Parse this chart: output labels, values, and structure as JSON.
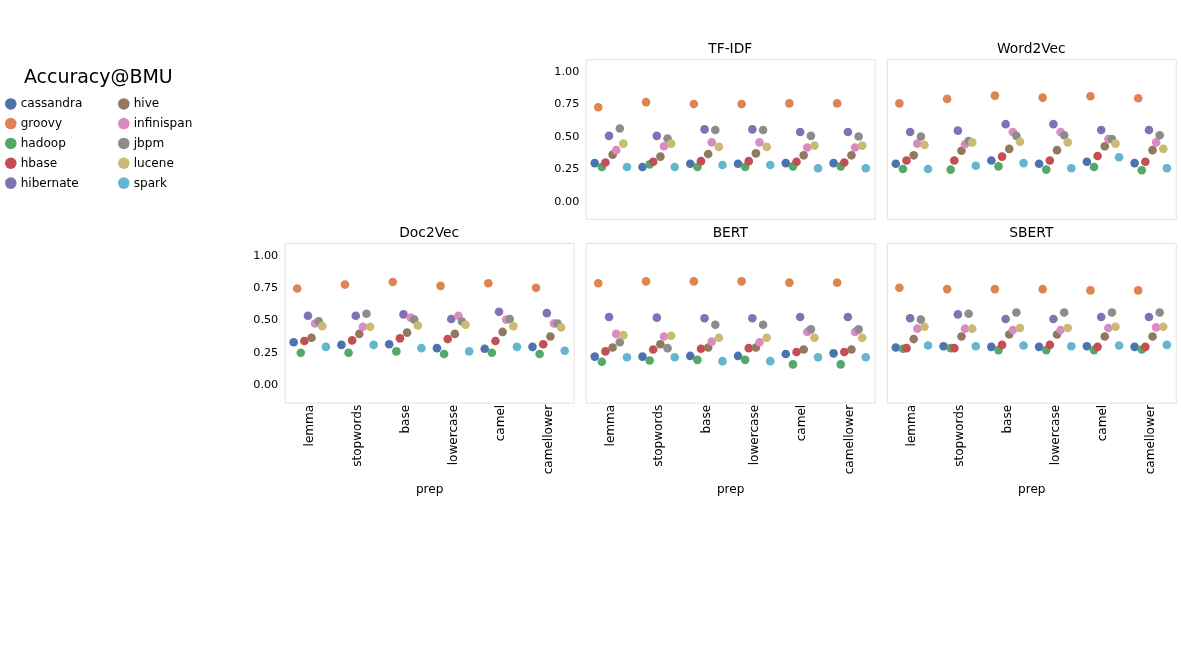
{
  "chart_data": [
    {
      "type": "scatter",
      "title": "TF-IDF",
      "legend_title": "Accuracy@BMU",
      "legend": "left",
      "tick_labels": "y",
      "grid": false,
      "marker": "circle",
      "categories": [
        "lemma",
        "stopwords",
        "base",
        "lowercase",
        "camel",
        "camellower"
      ],
      "ylim": [
        -0.14,
        1.09
      ],
      "yticks": [
        {
          "value": 0,
          "label": "0.00"
        },
        {
          "value": 0.25,
          "label": "0.25"
        },
        {
          "value": 0.5,
          "label": "0.50"
        },
        {
          "value": 0.75,
          "label": "0.75"
        },
        {
          "value": 1,
          "label": "1.00"
        }
      ],
      "series": [
        {
          "name": "cassandra",
          "color": "#4c72b0",
          "values": [
            0.29,
            0.26,
            0.285,
            0.285,
            0.29,
            0.29
          ]
        },
        {
          "name": "groovy",
          "color": "#dd8452",
          "values": [
            0.72,
            0.76,
            0.745,
            0.745,
            0.75,
            0.75
          ]
        },
        {
          "name": "hadoop",
          "color": "#55a868",
          "values": [
            0.26,
            0.28,
            0.26,
            0.26,
            0.265,
            0.265
          ]
        },
        {
          "name": "hbase",
          "color": "#c44e52",
          "values": [
            0.295,
            0.3,
            0.305,
            0.305,
            0.3,
            0.295
          ]
        },
        {
          "name": "hibernate",
          "color": "#8172b3",
          "values": [
            0.5,
            0.5,
            0.55,
            0.55,
            0.53,
            0.53
          ]
        },
        {
          "name": "hive",
          "color": "#937860",
          "values": [
            0.355,
            0.34,
            0.36,
            0.365,
            0.35,
            0.35
          ]
        },
        {
          "name": "infinispan",
          "color": "#da8bc3",
          "values": [
            0.39,
            0.42,
            0.45,
            0.45,
            0.41,
            0.41
          ]
        },
        {
          "name": "jbpm",
          "color": "#8c8c8c",
          "values": [
            0.557,
            0.48,
            0.545,
            0.545,
            0.5,
            0.495
          ]
        },
        {
          "name": "lucene",
          "color": "#ccb974",
          "values": [
            0.44,
            0.44,
            0.415,
            0.415,
            0.425,
            0.425
          ]
        },
        {
          "name": "spark",
          "color": "#64b5cd",
          "values": [
            0.26,
            0.26,
            0.275,
            0.275,
            0.25,
            0.25
          ]
        }
      ]
    },
    {
      "type": "scatter",
      "title": "Word2Vec",
      "legend": false,
      "tick_labels": false,
      "grid": false,
      "marker": "circle",
      "categories": [
        "lemma",
        "stopwords",
        "base",
        "lowercase",
        "camel",
        "camellower"
      ],
      "ylim": [
        -0.14,
        1.09
      ],
      "series": [
        {
          "name": "cassandra",
          "color": "#4c72b0",
          "values": [
            0.285,
            null,
            0.31,
            0.285,
            0.3,
            0.29
          ]
        },
        {
          "name": "groovy",
          "color": "#dd8452",
          "values": [
            0.75,
            0.785,
            0.81,
            0.795,
            0.805,
            0.79
          ]
        },
        {
          "name": "hadoop",
          "color": "#55a868",
          "values": [
            0.245,
            0.24,
            0.265,
            0.24,
            0.26,
            0.235
          ]
        },
        {
          "name": "hbase",
          "color": "#c44e52",
          "values": [
            0.31,
            0.31,
            0.34,
            0.31,
            0.345,
            0.3
          ]
        },
        {
          "name": "hibernate",
          "color": "#8172b3",
          "values": [
            0.53,
            0.54,
            0.59,
            0.59,
            0.545,
            0.545
          ]
        },
        {
          "name": "hive",
          "color": "#937860",
          "values": [
            0.35,
            0.385,
            0.4,
            0.39,
            0.42,
            0.39
          ]
        },
        {
          "name": "infinispan",
          "color": "#da8bc3",
          "values": [
            0.44,
            0.435,
            0.53,
            0.53,
            0.475,
            0.45
          ]
        },
        {
          "name": "jbpm",
          "color": "#8c8c8c",
          "values": [
            0.495,
            0.46,
            0.5,
            0.505,
            0.475,
            0.505
          ]
        },
        {
          "name": "lucene",
          "color": "#ccb974",
          "values": [
            0.43,
            0.45,
            0.455,
            0.45,
            0.44,
            0.4
          ]
        },
        {
          "name": "spark",
          "color": "#64b5cd",
          "values": [
            0.245,
            0.27,
            0.29,
            0.25,
            0.335,
            0.25
          ]
        }
      ]
    },
    {
      "type": "scatter",
      "title": "Doc2Vec",
      "xlabel": "prep",
      "legend": false,
      "grid": false,
      "marker": "circle",
      "categories": [
        "lemma",
        "stopwords",
        "base",
        "lowercase",
        "camel",
        "camellower"
      ],
      "ylim": [
        -0.14,
        1.09
      ],
      "yticks": [
        {
          "value": 0,
          "label": "0.00"
        },
        {
          "value": 0.25,
          "label": "0.25"
        },
        {
          "value": 0.5,
          "label": "0.50"
        },
        {
          "value": 0.75,
          "label": "0.75"
        },
        {
          "value": 1,
          "label": "1.00"
        }
      ],
      "series": [
        {
          "name": "cassandra",
          "color": "#4c72b0",
          "values": [
            0.325,
            0.305,
            0.31,
            0.28,
            0.275,
            0.29
          ]
        },
        {
          "name": "groovy",
          "color": "#dd8452",
          "values": [
            0.74,
            0.77,
            0.79,
            0.76,
            0.78,
            0.745
          ]
        },
        {
          "name": "hadoop",
          "color": "#55a868",
          "values": [
            0.245,
            0.245,
            0.255,
            0.235,
            0.245,
            0.235
          ]
        },
        {
          "name": "hbase",
          "color": "#c44e52",
          "values": [
            0.335,
            0.34,
            0.355,
            0.35,
            0.335,
            0.31
          ]
        },
        {
          "name": "hibernate",
          "color": "#8172b3",
          "values": [
            0.53,
            0.53,
            0.54,
            0.505,
            0.56,
            0.55
          ]
        },
        {
          "name": "hive",
          "color": "#937860",
          "values": [
            0.36,
            0.39,
            0.4,
            0.39,
            0.405,
            0.37
          ]
        },
        {
          "name": "infinispan",
          "color": "#da8bc3",
          "values": [
            0.47,
            0.445,
            0.515,
            0.53,
            0.5,
            0.47
          ]
        },
        {
          "name": "jbpm",
          "color": "#8c8c8c",
          "values": [
            0.487,
            0.545,
            0.5,
            0.485,
            0.505,
            0.47
          ]
        },
        {
          "name": "lucene",
          "color": "#ccb974",
          "values": [
            0.45,
            0.445,
            0.455,
            0.46,
            0.45,
            0.44
          ]
        },
        {
          "name": "spark",
          "color": "#64b5cd",
          "values": [
            0.29,
            0.305,
            0.28,
            0.255,
            0.29,
            0.26
          ]
        }
      ]
    },
    {
      "type": "scatter",
      "title": "BERT",
      "xlabel": "prep",
      "legend": false,
      "tick_labels": "x",
      "grid": false,
      "marker": "circle",
      "categories": [
        "lemma",
        "stopwords",
        "base",
        "lowercase",
        "camel",
        "camellower"
      ],
      "ylim": [
        -0.14,
        1.09
      ],
      "series": [
        {
          "name": "cassandra",
          "color": "#4c72b0",
          "values": [
            0.215,
            0.215,
            0.22,
            0.22,
            0.235,
            0.24
          ]
        },
        {
          "name": "groovy",
          "color": "#dd8452",
          "values": [
            0.78,
            0.795,
            0.795,
            0.795,
            0.785,
            0.785
          ]
        },
        {
          "name": "hadoop",
          "color": "#55a868",
          "values": [
            0.175,
            0.185,
            0.19,
            0.19,
            0.155,
            0.155
          ]
        },
        {
          "name": "hbase",
          "color": "#c44e52",
          "values": [
            0.255,
            0.27,
            0.275,
            0.28,
            0.25,
            0.25
          ]
        },
        {
          "name": "hibernate",
          "color": "#8172b3",
          "values": [
            0.52,
            0.515,
            0.51,
            0.51,
            0.52,
            0.52
          ]
        },
        {
          "name": "hive",
          "color": "#937860",
          "values": [
            0.285,
            0.31,
            0.285,
            0.285,
            0.27,
            0.27
          ]
        },
        {
          "name": "infinispan",
          "color": "#da8bc3",
          "values": [
            0.39,
            0.37,
            0.33,
            0.325,
            0.405,
            0.405
          ]
        },
        {
          "name": "jbpm",
          "color": "#8c8c8c",
          "values": [
            0.325,
            0.28,
            0.46,
            0.46,
            0.425,
            0.425
          ]
        },
        {
          "name": "lucene",
          "color": "#ccb974",
          "values": [
            0.38,
            0.375,
            0.36,
            0.36,
            0.36,
            0.36
          ]
        },
        {
          "name": "spark",
          "color": "#64b5cd",
          "values": [
            0.21,
            0.21,
            0.18,
            0.18,
            0.21,
            0.21
          ]
        }
      ]
    },
    {
      "type": "scatter",
      "title": "SBERT",
      "xlabel": "prep",
      "legend": false,
      "tick_labels": "x",
      "grid": false,
      "marker": "circle",
      "categories": [
        "lemma",
        "stopwords",
        "base",
        "lowercase",
        "camel",
        "camellower"
      ],
      "ylim": [
        -0.14,
        1.09
      ],
      "series": [
        {
          "name": "cassandra",
          "color": "#4c72b0",
          "values": [
            0.285,
            0.295,
            0.29,
            0.29,
            0.295,
            0.29
          ]
        },
        {
          "name": "groovy",
          "color": "#dd8452",
          "values": [
            0.745,
            0.735,
            0.735,
            0.735,
            0.725,
            0.725
          ]
        },
        {
          "name": "hadoop",
          "color": "#55a868",
          "values": [
            0.275,
            0.28,
            0.265,
            0.265,
            0.265,
            0.27
          ]
        },
        {
          "name": "hbase",
          "color": "#c44e52",
          "values": [
            0.28,
            0.28,
            0.305,
            0.305,
            0.29,
            0.29
          ]
        },
        {
          "name": "hibernate",
          "color": "#8172b3",
          "values": [
            0.51,
            0.54,
            0.505,
            0.505,
            0.52,
            0.52
          ]
        },
        {
          "name": "hive",
          "color": "#937860",
          "values": [
            0.35,
            0.37,
            0.385,
            0.385,
            0.37,
            0.37
          ]
        },
        {
          "name": "infinispan",
          "color": "#da8bc3",
          "values": [
            0.43,
            0.43,
            0.42,
            0.42,
            0.435,
            0.44
          ]
        },
        {
          "name": "jbpm",
          "color": "#8c8c8c",
          "values": [
            0.5,
            0.545,
            0.555,
            0.555,
            0.555,
            0.555
          ]
        },
        {
          "name": "lucene",
          "color": "#ccb974",
          "values": [
            0.445,
            0.43,
            0.435,
            0.435,
            0.445,
            0.445
          ]
        },
        {
          "name": "spark",
          "color": "#64b5cd",
          "values": [
            0.3,
            0.295,
            0.3,
            0.295,
            0.3,
            0.305
          ]
        }
      ]
    }
  ]
}
